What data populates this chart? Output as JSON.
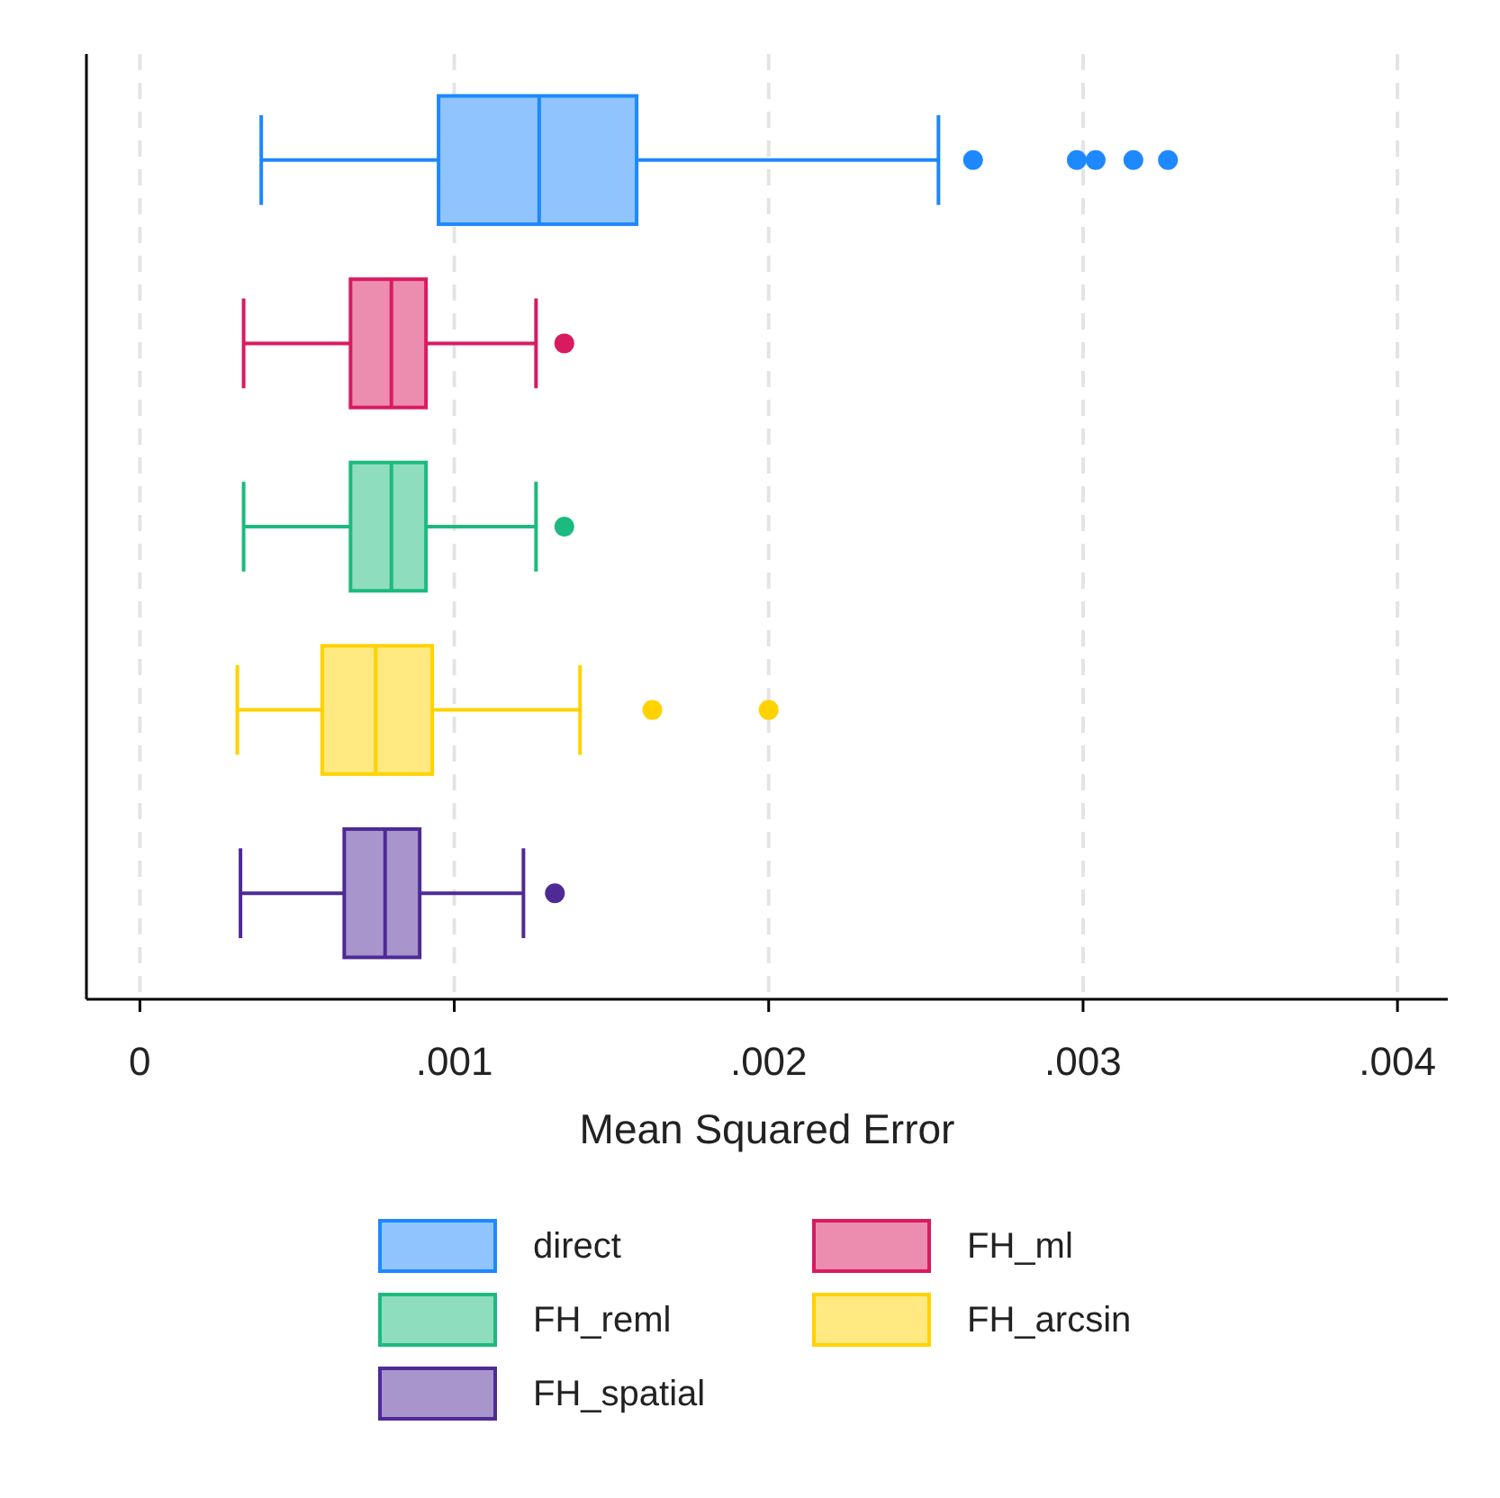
{
  "chart_data": {
    "type": "box",
    "orientation": "horizontal",
    "xlabel": "Mean Squared Error",
    "categories": [
      null,
      null,
      null,
      null,
      null
    ],
    "xlim": [
      -0.00017,
      0.00416
    ],
    "xticks": [
      0,
      {
        "value": 0.001,
        "label": ".001"
      },
      {
        "value": 0.002,
        "label": ".002"
      },
      {
        "value": 0.003,
        "label": ".003"
      },
      {
        "value": 0.004,
        "label": ".004"
      }
    ],
    "grid": "x",
    "tick_labels": "x",
    "legend": "bottom",
    "series": [
      {
        "name": "direct",
        "color": "#1e88ff",
        "boxes": [
          {
            "low": 0.000386,
            "q1": 0.00095,
            "median": 0.00127,
            "q3": 0.00158,
            "high": 0.00254,
            "outliers": [
              0.00265,
              0.00298,
              0.00304,
              0.00316,
              0.00327
            ]
          },
          null,
          null,
          null,
          null
        ]
      },
      {
        "name": "FH_ml",
        "color": "#d81b60",
        "boxes": [
          null,
          {
            "low": 0.00033,
            "q1": 0.00067,
            "median": 0.0008,
            "q3": 0.00091,
            "high": 0.00126,
            "outliers": [
              0.00135
            ]
          },
          null,
          null,
          null
        ]
      },
      {
        "name": "FH_reml",
        "color": "#1cba7e",
        "boxes": [
          null,
          null,
          {
            "low": 0.00033,
            "q1": 0.00067,
            "median": 0.0008,
            "q3": 0.00091,
            "high": 0.00126,
            "outliers": [
              0.00135
            ]
          },
          null,
          null
        ]
      },
      {
        "name": "FH_arcsin",
        "color": "#ffd200",
        "boxes": [
          null,
          null,
          null,
          {
            "low": 0.00031,
            "q1": 0.00058,
            "median": 0.00075,
            "q3": 0.00093,
            "high": 0.0014,
            "outliers": [
              0.00163,
              0.002
            ]
          },
          null
        ]
      },
      {
        "name": "FH_spatial",
        "color": "#4e2a96",
        "boxes": [
          null,
          null,
          null,
          null,
          {
            "low": 0.00032,
            "q1": 0.00065,
            "median": 0.00078,
            "q3": 0.00089,
            "high": 0.00122,
            "outliers": [
              0.00132
            ]
          }
        ]
      }
    ]
  }
}
